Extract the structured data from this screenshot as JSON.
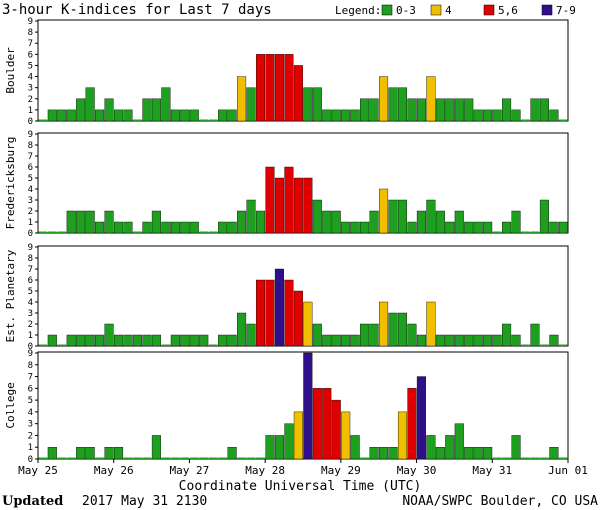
{
  "chart_data": {
    "type": "bar",
    "title": "3-hour K-indices for Last 7 days",
    "legend": {
      "label": "Legend:",
      "position": "top-right",
      "entries": [
        {
          "label": "0-3",
          "color": "#1f9f1f"
        },
        {
          "label": "4",
          "color": "#f0c000"
        },
        {
          "label": "5,6",
          "color": "#e00000"
        },
        {
          "label": "7-9",
          "color": "#30108a"
        }
      ]
    },
    "xlabel": "Coordinate Universal Time (UTC)",
    "date_ticks": [
      "May 25",
      "May 26",
      "May 27",
      "May 28",
      "May 29",
      "May 30",
      "May 31",
      "Jun 01"
    ],
    "ylim": [
      0,
      9
    ],
    "y_ticks": [
      0,
      1,
      2,
      3,
      4,
      5,
      6,
      7,
      8,
      9
    ],
    "grid": false,
    "series": [
      {
        "name": "Boulder",
        "values": [
          0,
          1,
          1,
          1,
          2,
          3,
          1,
          2,
          1,
          1,
          0,
          2,
          2,
          3,
          1,
          1,
          1,
          0,
          0,
          1,
          1,
          4,
          3,
          6,
          6,
          6,
          6,
          5,
          3,
          3,
          1,
          1,
          1,
          1,
          2,
          2,
          4,
          3,
          3,
          2,
          2,
          4,
          2,
          2,
          2,
          2,
          1,
          1,
          1,
          2,
          1,
          0,
          2,
          2,
          1,
          0
        ]
      },
      {
        "name": "Fredericksburg",
        "values": [
          0,
          0,
          0,
          2,
          2,
          2,
          1,
          2,
          1,
          1,
          0,
          1,
          2,
          1,
          1,
          1,
          1,
          0,
          0,
          1,
          1,
          2,
          3,
          2,
          6,
          5,
          6,
          5,
          5,
          3,
          2,
          2,
          1,
          1,
          1,
          2,
          4,
          3,
          3,
          1,
          2,
          3,
          2,
          1,
          2,
          1,
          1,
          1,
          0,
          1,
          2,
          0,
          0,
          3,
          1,
          1
        ]
      },
      {
        "name": "Est. Planetary",
        "values": [
          0,
          1,
          0,
          1,
          1,
          1,
          1,
          2,
          1,
          1,
          1,
          1,
          1,
          0,
          1,
          1,
          1,
          1,
          0,
          1,
          1,
          3,
          2,
          6,
          6,
          7,
          6,
          5,
          4,
          2,
          1,
          1,
          1,
          1,
          2,
          2,
          4,
          3,
          3,
          2,
          1,
          4,
          1,
          1,
          1,
          1,
          1,
          1,
          1,
          2,
          1,
          0,
          2,
          0,
          1,
          0
        ]
      },
      {
        "name": "College",
        "values": [
          0,
          1,
          0,
          0,
          1,
          1,
          0,
          1,
          1,
          0,
          0,
          0,
          2,
          0,
          0,
          0,
          0,
          0,
          0,
          0,
          1,
          0,
          0,
          0,
          2,
          2,
          3,
          4,
          9,
          6,
          6,
          5,
          4,
          2,
          0,
          1,
          1,
          1,
          4,
          6,
          7,
          2,
          1,
          2,
          3,
          1,
          1,
          1,
          0,
          0,
          2,
          0,
          0,
          0,
          1,
          0
        ]
      }
    ]
  },
  "footer": {
    "updated_label": "Updated",
    "updated_value": "2017 May 31 2130",
    "credit": "NOAA/SWPC Boulder, CO USA"
  }
}
